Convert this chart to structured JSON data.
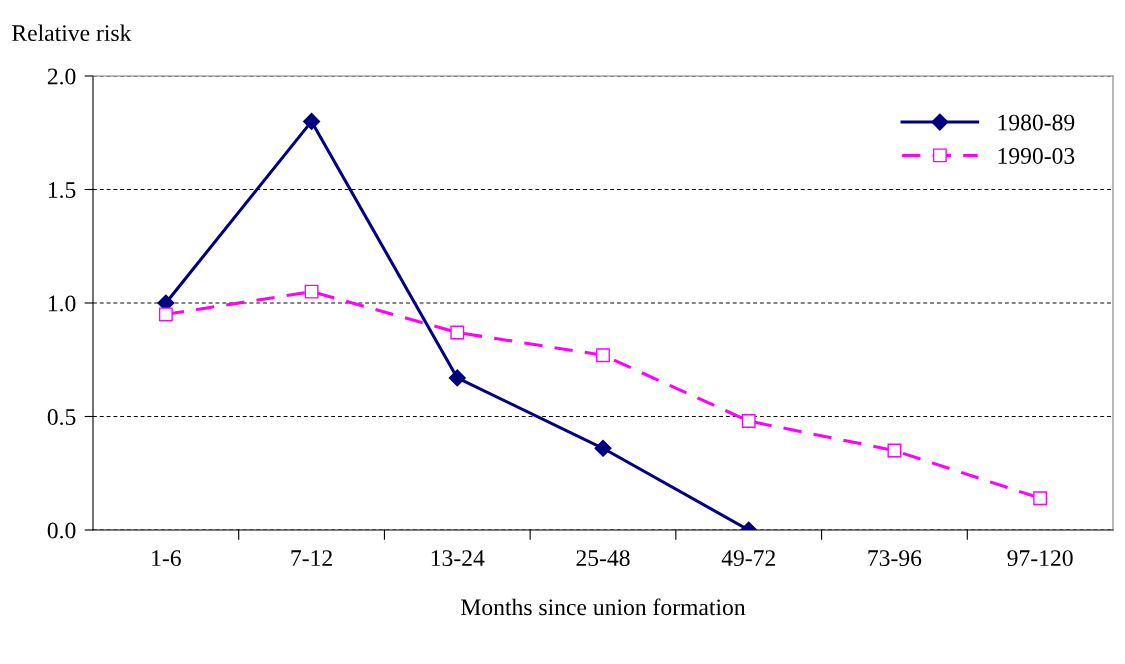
{
  "chart_data": {
    "type": "line",
    "ylabel": "Relative risk",
    "xlabel": "Months since union formation",
    "categories": [
      "1-6",
      "7-12",
      "13-24",
      "25-48",
      "49-72",
      "73-96",
      "97-120"
    ],
    "series": [
      {
        "name": "1980-89",
        "color": "#000080",
        "marker": "diamond",
        "line_style": "solid",
        "values": [
          1.0,
          1.8,
          0.67,
          0.36,
          0.0,
          null,
          null
        ]
      },
      {
        "name": "1990-03",
        "color": "#ff00ff",
        "marker": "square",
        "line_style": "dashed",
        "values": [
          0.95,
          1.05,
          0.87,
          0.77,
          0.48,
          0.35,
          0.14
        ]
      }
    ],
    "ylim": [
      0,
      2
    ],
    "yticks": [
      {
        "value": 0,
        "label": "0.0"
      },
      {
        "value": 0.5,
        "label": "0.5"
      },
      {
        "value": 1,
        "label": "1.0"
      },
      {
        "value": 1.5,
        "label": "1.5"
      },
      {
        "value": 2,
        "label": "2.0"
      }
    ],
    "grid": "y",
    "legend": "top right"
  }
}
